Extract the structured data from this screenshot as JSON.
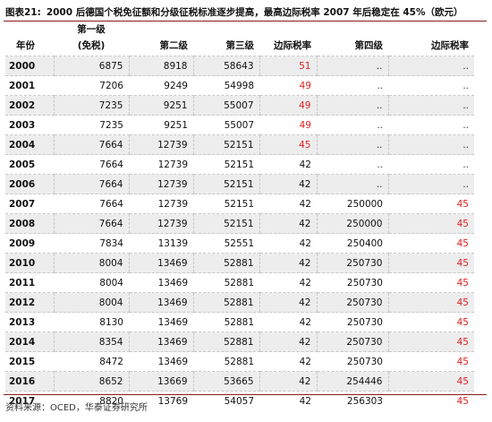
{
  "caption": {
    "label": "图表21:",
    "title": "2000 后德国个税免征额和分级征税标准逐步提高，最高边际税率 2007 年后稳定在 45%（欧元）"
  },
  "table": {
    "headers_top": {
      "exempt": "第一级"
    },
    "headers": {
      "year": "年份",
      "exempt": "(免税)",
      "level2": "第二级",
      "level3": "第三级",
      "marginal_rate": "边际税率",
      "level4": "第四级",
      "marginal_rate2": "边际税率"
    },
    "rows": [
      {
        "year": "2000",
        "exempt": "6875",
        "level2": "8918",
        "level3": "58643",
        "rate": "51",
        "level4": "..",
        "rate2": ".."
      },
      {
        "year": "2001",
        "exempt": "7206",
        "level2": "9249",
        "level3": "54998",
        "rate": "49",
        "level4": "..",
        "rate2": ".."
      },
      {
        "year": "2002",
        "exempt": "7235",
        "level2": "9251",
        "level3": "55007",
        "rate": "49",
        "level4": "..",
        "rate2": ".."
      },
      {
        "year": "2003",
        "exempt": "7235",
        "level2": "9251",
        "level3": "55007",
        "rate": "49",
        "level4": "..",
        "rate2": ".."
      },
      {
        "year": "2004",
        "exempt": "7664",
        "level2": "12739",
        "level3": "52151",
        "rate": "45",
        "level4": "..",
        "rate2": ".."
      },
      {
        "year": "2005",
        "exempt": "7664",
        "level2": "12739",
        "level3": "52151",
        "rate": "42",
        "level4": "..",
        "rate2": ".."
      },
      {
        "year": "2006",
        "exempt": "7664",
        "level2": "12739",
        "level3": "52151",
        "rate": "42",
        "level4": "..",
        "rate2": ".."
      },
      {
        "year": "2007",
        "exempt": "7664",
        "level2": "12739",
        "level3": "52151",
        "rate": "42",
        "level4": "250000",
        "rate2": "45"
      },
      {
        "year": "2008",
        "exempt": "7664",
        "level2": "12739",
        "level3": "52151",
        "rate": "42",
        "level4": "250000",
        "rate2": "45"
      },
      {
        "year": "2009",
        "exempt": "7834",
        "level2": "13139",
        "level3": "52551",
        "rate": "42",
        "level4": "250400",
        "rate2": "45"
      },
      {
        "year": "2010",
        "exempt": "8004",
        "level2": "13469",
        "level3": "52881",
        "rate": "42",
        "level4": "250730",
        "rate2": "45"
      },
      {
        "year": "2011",
        "exempt": "8004",
        "level2": "13469",
        "level3": "52881",
        "rate": "42",
        "level4": "250730",
        "rate2": "45"
      },
      {
        "year": "2012",
        "exempt": "8004",
        "level2": "13469",
        "level3": "52881",
        "rate": "42",
        "level4": "250730",
        "rate2": "45"
      },
      {
        "year": "2013",
        "exempt": "8130",
        "level2": "13469",
        "level3": "52881",
        "rate": "42",
        "level4": "250730",
        "rate2": "45"
      },
      {
        "year": "2014",
        "exempt": "8354",
        "level2": "13469",
        "level3": "52881",
        "rate": "42",
        "level4": "250730",
        "rate2": "45"
      },
      {
        "year": "2015",
        "exempt": "8472",
        "level2": "13469",
        "level3": "52881",
        "rate": "42",
        "level4": "250730",
        "rate2": "45"
      },
      {
        "year": "2016",
        "exempt": "8652",
        "level2": "13669",
        "level3": "53665",
        "rate": "42",
        "level4": "254446",
        "rate2": "45"
      },
      {
        "year": "2017",
        "exempt": "8820",
        "level2": "13769",
        "level3": "54057",
        "rate": "42",
        "level4": "256303",
        "rate2": "45"
      }
    ]
  },
  "source": "资料来源：OCED，华泰证券研究所",
  "colors": {
    "accent_rule": "#8b1a1a",
    "highlight_red": "#e02020",
    "row_shade": "#ededed"
  }
}
